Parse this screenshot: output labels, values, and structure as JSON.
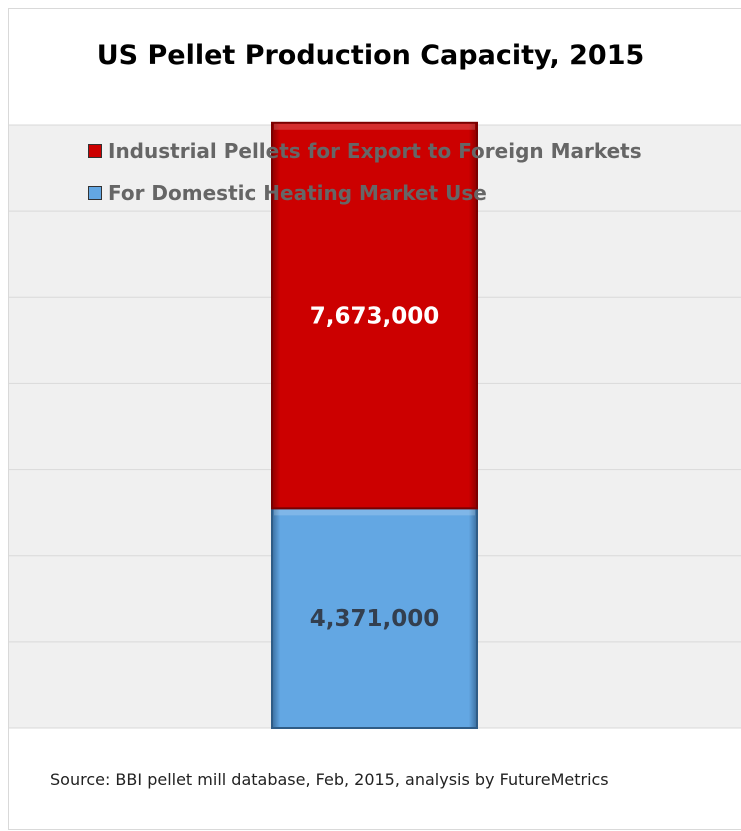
{
  "title": "US Pellet Production Capacity, 2015",
  "source": "Source: BBI pellet mill database, Feb, 2015, analysis by FutureMetrics",
  "colors": {
    "export": "#cc0000",
    "domestic": "#63a7e3",
    "export_label": "#ffffff",
    "domestic_label": "#333f4f",
    "gridline": "#d9d9d9",
    "plot_bg": "#f0f0f0"
  },
  "chart_data": {
    "type": "bar",
    "stacked": true,
    "categories": [
      ""
    ],
    "series": [
      {
        "name": "For Domestic Heating Market Use",
        "values": [
          4371000
        ],
        "label": "4,371,000"
      },
      {
        "name": "Industrial Pellets for Export to Foreign Markets",
        "values": [
          7673000
        ],
        "label": "7,673,000"
      }
    ],
    "legend_order": [
      "Industrial Pellets for Export to Foreign Markets",
      "For Domestic Heating Market Use"
    ],
    "title": "US Pellet Production Capacity, 2015",
    "xlabel": "",
    "ylabel": "",
    "ylim": [
      0,
      12000000
    ],
    "grid": true,
    "legend": "top-left"
  }
}
